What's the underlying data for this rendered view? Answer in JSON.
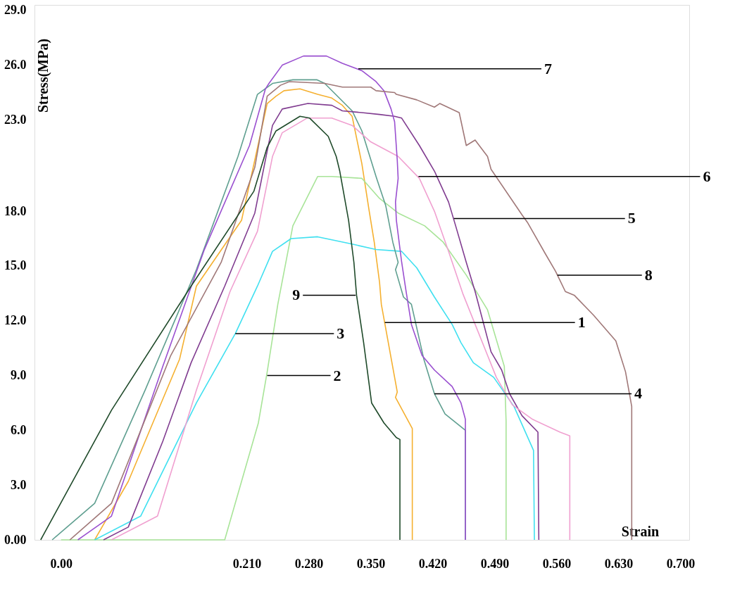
{
  "chart_data": {
    "type": "line",
    "xlabel": "Strain",
    "ylabel": "Stress(MPa)",
    "xlim": [
      -0.03,
      0.71
    ],
    "ylim": [
      0,
      29.3
    ],
    "xticks": [
      {
        "value": 0,
        "label": "0.00"
      },
      {
        "value": 0.21,
        "label": "0.210"
      },
      {
        "value": 0.28,
        "label": "0.280"
      },
      {
        "value": 0.35,
        "label": "0.350"
      },
      {
        "value": 0.42,
        "label": "0.420"
      },
      {
        "value": 0.49,
        "label": "0.490"
      },
      {
        "value": 0.56,
        "label": "0.560"
      },
      {
        "value": 0.63,
        "label": "0.630"
      },
      {
        "value": 0.7,
        "label": "0.700"
      }
    ],
    "yticks": [
      {
        "value": 0,
        "label": "0.00"
      },
      {
        "value": 3,
        "label": "3.0"
      },
      {
        "value": 6,
        "label": "6.0"
      },
      {
        "value": 9,
        "label": "9.0"
      },
      {
        "value": 12,
        "label": "12.0"
      },
      {
        "value": 15,
        "label": "15.0"
      },
      {
        "value": 18,
        "label": "18.0"
      },
      {
        "value": 23,
        "label": "23.0"
      },
      {
        "value": 26,
        "label": "26.0"
      },
      {
        "value": 29,
        "label": "29.0"
      }
    ],
    "grid": false,
    "legend": false,
    "marker": "none",
    "line_style": "solid",
    "series": [
      {
        "color": "#f5b030",
        "x": [
          0.038,
          0.076,
          0.134,
          0.153,
          0.204,
          0.233,
          0.243,
          0.252,
          0.27,
          0.29,
          0.306,
          0.318,
          0.329,
          0.34,
          0.348,
          0.354,
          0.36,
          0.362,
          0.371,
          0.38,
          0.378,
          0.397,
          0.397
        ],
        "values": [
          0,
          3.2,
          9.9,
          13.9,
          17.5,
          23.9,
          24.3,
          24.6,
          24.7,
          24.4,
          24.2,
          23.8,
          23.2,
          20.6,
          18.1,
          16.3,
          14.1,
          12.9,
          10.5,
          8.1,
          7.8,
          6.1,
          0
        ]
      },
      {
        "color": "#a8e498",
        "x": [
          0,
          0.185,
          0.223,
          0.233,
          0.245,
          0.262,
          0.29,
          0.306,
          0.34,
          0.36,
          0.381,
          0.411,
          0.432,
          0.458,
          0.482,
          0.501,
          0.503,
          0.503
        ],
        "values": [
          0,
          0,
          6.4,
          9.2,
          12.9,
          17.2,
          19.9,
          19.9,
          19.8,
          18.7,
          17.9,
          17.2,
          16.3,
          14.5,
          12.6,
          9.5,
          6.5,
          0
        ]
      },
      {
        "color": "#40e0f0",
        "x": [
          0.038,
          0.09,
          0.153,
          0.197,
          0.222,
          0.239,
          0.26,
          0.29,
          0.329,
          0.356,
          0.385,
          0.402,
          0.422,
          0.442,
          0.452,
          0.466,
          0.489,
          0.512,
          0.534,
          0.535
        ],
        "values": [
          0,
          1.3,
          7.5,
          11.3,
          13.9,
          15.8,
          16.5,
          16.6,
          16.2,
          15.9,
          15.8,
          14.9,
          13.3,
          11.8,
          10.8,
          9.7,
          8.9,
          7.3,
          4.9,
          0
        ]
      },
      {
        "color": "#5f9f90",
        "x": [
          -0.01,
          0.038,
          0.095,
          0.153,
          0.2,
          0.222,
          0.239,
          0.262,
          0.278,
          0.289,
          0.298,
          0.329,
          0.34,
          0.356,
          0.367,
          0.375,
          0.381,
          0.378,
          0.387,
          0.396,
          0.41,
          0.422,
          0.434,
          0.457,
          0.457
        ],
        "values": [
          0,
          2.0,
          8.2,
          14.8,
          21.0,
          24.4,
          25.0,
          25.2,
          25.2,
          25.2,
          25.0,
          23.5,
          22.4,
          19.9,
          18.3,
          16.3,
          15.2,
          14.8,
          13.3,
          12.9,
          9.9,
          8.0,
          6.9,
          6.0,
          0
        ]
      },
      {
        "color": "#803c90",
        "x": [
          0.048,
          0.076,
          0.115,
          0.147,
          0.185,
          0.219,
          0.233,
          0.239,
          0.25,
          0.279,
          0.306,
          0.318,
          0.34,
          0.36,
          0.377,
          0.385,
          0.405,
          0.422,
          0.438,
          0.446,
          0.458,
          0.468,
          0.486,
          0.498,
          0.507,
          0.521,
          0.539,
          0.54
        ],
        "values": [
          0,
          0.7,
          5.4,
          9.7,
          13.9,
          17.9,
          21.3,
          22.7,
          23.6,
          23.9,
          23.8,
          23.5,
          23.4,
          23.3,
          23.2,
          23.1,
          21.6,
          20.2,
          18.5,
          17.2,
          15.2,
          13.6,
          10.3,
          9.3,
          8.0,
          6.8,
          5.9,
          0
        ]
      },
      {
        "color": "#f0a0d0",
        "x": [
          0.057,
          0.109,
          0.153,
          0.191,
          0.222,
          0.239,
          0.25,
          0.278,
          0.306,
          0.329,
          0.35,
          0.381,
          0.405,
          0.422,
          0.438,
          0.454,
          0.492,
          0.51,
          0.533,
          0.564,
          0.575,
          0.575
        ],
        "values": [
          0,
          1.3,
          8.2,
          13.6,
          16.9,
          21.0,
          22.3,
          23.1,
          23.1,
          22.7,
          21.8,
          21.0,
          19.8,
          18.0,
          15.8,
          13.5,
          8.9,
          7.4,
          6.6,
          5.9,
          5.7,
          0
        ]
      },
      {
        "color": "#9a50d0",
        "x": [
          0.019,
          0.057,
          0.115,
          0.162,
          0.213,
          0.231,
          0.235,
          0.25,
          0.274,
          0.3,
          0.318,
          0.34,
          0.356,
          0.365,
          0.373,
          0.377,
          0.38,
          0.381,
          0.378,
          0.379,
          0.385,
          0.39,
          0.396,
          0.408,
          0.422,
          0.442,
          0.452,
          0.457,
          0.457
        ],
        "values": [
          0,
          1.3,
          9.5,
          15.9,
          21.6,
          24.7,
          25.0,
          26.0,
          26.5,
          26.5,
          26.1,
          25.7,
          25.1,
          24.6,
          23.6,
          22.9,
          20.8,
          19.8,
          18.5,
          17.5,
          15.2,
          13.6,
          11.8,
          10.1,
          9.3,
          8.4,
          7.5,
          6.6,
          0
        ]
      },
      {
        "color": "#a07878",
        "x": [
          0.01,
          0.057,
          0.124,
          0.181,
          0.219,
          0.233,
          0.248,
          0.258,
          0.298,
          0.318,
          0.35,
          0.356,
          0.377,
          0.379,
          0.402,
          0.422,
          0.428,
          0.45,
          0.458,
          0.468,
          0.482,
          0.486,
          0.521,
          0.527,
          0.547,
          0.559,
          0.57,
          0.58,
          0.602,
          0.627,
          0.638,
          0.645,
          0.645
        ],
        "values": [
          0,
          2.0,
          10.1,
          15.2,
          20.4,
          24.3,
          24.9,
          25.1,
          25.0,
          24.8,
          24.8,
          24.6,
          24.5,
          24.4,
          24.1,
          23.7,
          23.9,
          23.4,
          21.6,
          21.9,
          21.0,
          20.3,
          17.8,
          17.4,
          15.7,
          14.7,
          13.6,
          13.4,
          12.3,
          10.9,
          9.2,
          7.3,
          0
        ]
      },
      {
        "color": "#1f4a2a",
        "x": [
          -0.023,
          0.057,
          0.147,
          0.218,
          0.233,
          0.243,
          0.27,
          0.281,
          0.302,
          0.311,
          0.315,
          0.325,
          0.331,
          0.334,
          0.342,
          0.351,
          0.365,
          0.379,
          0.383,
          0.383
        ],
        "values": [
          0,
          7.1,
          13.9,
          19.1,
          21.5,
          22.4,
          23.2,
          23.1,
          22.1,
          21.0,
          20.2,
          17.5,
          15.2,
          13.4,
          10.8,
          7.5,
          6.4,
          5.6,
          5.5,
          0
        ]
      }
    ],
    "annotations": [
      {
        "text": "1",
        "x": 0.366,
        "y": 11.9
      },
      {
        "text": "2",
        "x": 0.233,
        "y": 9.0
      },
      {
        "text": "3",
        "x": 0.197,
        "y": 11.3
      },
      {
        "text": "4",
        "x": 0.422,
        "y": 8.0
      },
      {
        "text": "5",
        "x": 0.444,
        "y": 17.6
      },
      {
        "text": "6",
        "x": 0.404,
        "y": 19.9
      },
      {
        "text": "7",
        "x": 0.336,
        "y": 25.8
      },
      {
        "text": "8",
        "x": 0.561,
        "y": 14.5
      },
      {
        "text": "9",
        "x": 0.333,
        "y": 13.4
      }
    ]
  }
}
